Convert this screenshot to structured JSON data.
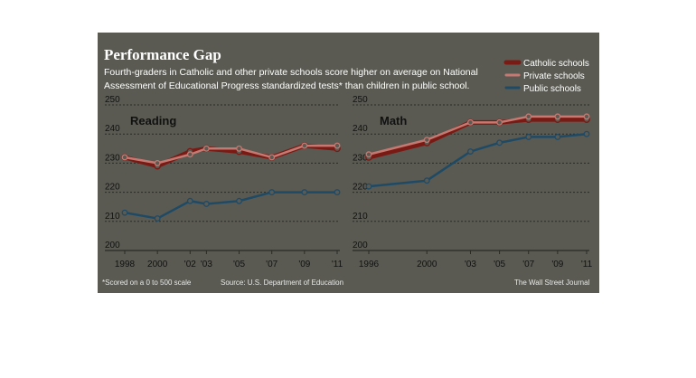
{
  "chart": {
    "title": "Performance Gap",
    "subtitle_line1": "Fourth-graders in Catholic and other private schools score higher on average on National",
    "subtitle_line2": "Assessment of Educational Progress standardized tests* than children in public school.",
    "footnote": "*Scored on a 0 to 500 scale",
    "source": "Source: U.S. Department of Education",
    "credit": "The Wall Street Journal"
  },
  "colors": {
    "background": "#5a5a52",
    "catholic": "#7a1a14",
    "private": "#c47a72",
    "public": "#1f4a66",
    "grid": "#2a2a25"
  },
  "legend": [
    "Catholic schools",
    "Private schools",
    "Public schools"
  ],
  "chart_data": [
    {
      "type": "line",
      "panel_label": "Reading",
      "x_tick_labels": [
        "1998",
        "2000",
        "'02",
        "'03",
        "'05",
        "'07",
        "'09",
        "'11"
      ],
      "y_ticks": [
        200,
        210,
        220,
        230,
        240,
        250
      ],
      "ylim": [
        200,
        250
      ],
      "grid": true,
      "series": [
        {
          "name": "Catholic schools",
          "x": [
            1998,
            2000,
            2002,
            2003,
            2005,
            2007,
            2009,
            2011
          ],
          "values": [
            232,
            229,
            234,
            235,
            234,
            232,
            236,
            235
          ]
        },
        {
          "name": "Private schools",
          "x": [
            1998,
            2000,
            2002,
            2003,
            2005,
            2007,
            2009,
            2011
          ],
          "values": [
            232,
            230,
            233,
            235,
            235,
            232,
            236,
            236
          ]
        },
        {
          "name": "Public schools",
          "x": [
            1998,
            2000,
            2002,
            2003,
            2005,
            2007,
            2009,
            2011
          ],
          "values": [
            213,
            211,
            217,
            216,
            217,
            220,
            220,
            220
          ]
        }
      ]
    },
    {
      "type": "line",
      "panel_label": "Math",
      "x_tick_labels": [
        "1996",
        "2000",
        "'03",
        "'05",
        "'07",
        "'09",
        "'11"
      ],
      "y_ticks": [
        200,
        210,
        220,
        230,
        240,
        250
      ],
      "ylim": [
        200,
        250
      ],
      "grid": true,
      "series": [
        {
          "name": "Catholic schools",
          "x": [
            1996,
            2000,
            2003,
            2005,
            2007,
            2009,
            2011
          ],
          "values": [
            232,
            237,
            244,
            244,
            245,
            245,
            245
          ]
        },
        {
          "name": "Private schools",
          "x": [
            1996,
            2000,
            2003,
            2005,
            2007,
            2009,
            2011
          ],
          "values": [
            233,
            238,
            244,
            244,
            246,
            246,
            246
          ]
        },
        {
          "name": "Public schools",
          "x": [
            1996,
            2000,
            2003,
            2005,
            2007,
            2009,
            2011
          ],
          "values": [
            222,
            224,
            234,
            237,
            239,
            239,
            240
          ]
        }
      ]
    }
  ]
}
